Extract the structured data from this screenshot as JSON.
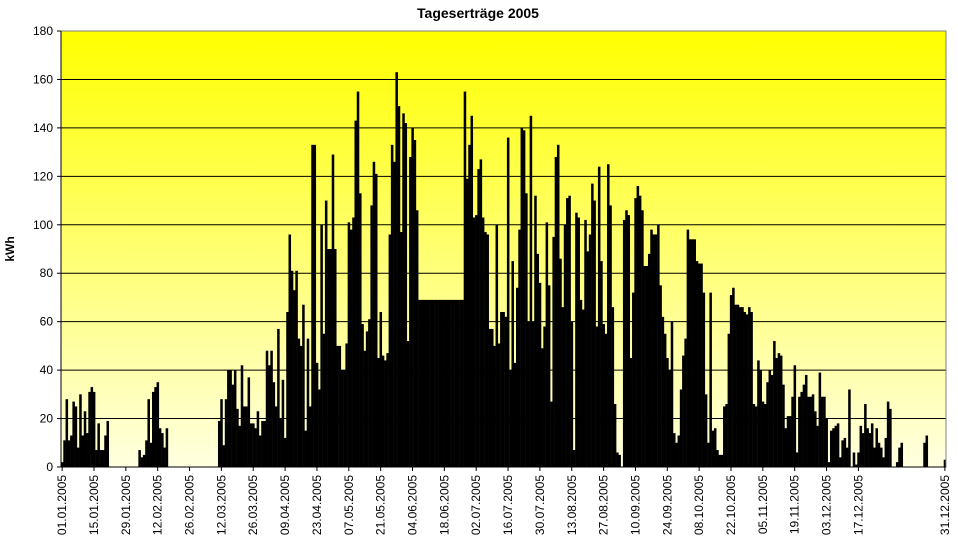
{
  "chart_data": {
    "type": "bar",
    "title": "Tageserträge 2005",
    "xlabel": "",
    "ylabel": "kWh",
    "ylim": [
      0,
      180
    ],
    "y_ticks": [
      0,
      20,
      40,
      60,
      80,
      100,
      120,
      140,
      160,
      180
    ],
    "x_tick_labels": [
      "01.01.2005",
      "15.01.2005",
      "29.01.2005",
      "12.02.2005",
      "26.02.2005",
      "12.03.2005",
      "26.03.2005",
      "09.04.2005",
      "23.04.2005",
      "07.05.2005",
      "21.05.2005",
      "04.06.2005",
      "18.06.2005",
      "02.07.2005",
      "16.07.2005",
      "30.07.2005",
      "13.08.2005",
      "27.08.2005",
      "10.09.2005",
      "24.09.2005",
      "08.10.2005",
      "22.10.2005",
      "05.11.2005",
      "19.11.2005",
      "03.12.2005",
      "17.12.2005",
      "31.12.2005"
    ],
    "x_start": "01.01.2005",
    "x_end": "31.12.2005",
    "grid": true,
    "legend": "none",
    "colors": {
      "bar": "#000000",
      "background_top": "#ffff00",
      "background_bottom": "#ffffe0",
      "gridline": "#000000"
    },
    "values": [
      2,
      11,
      28,
      11,
      13,
      27,
      25,
      8,
      30,
      13,
      23,
      14,
      31,
      33,
      31,
      7,
      18,
      7,
      7,
      13,
      19,
      0,
      0,
      0,
      0,
      0,
      0,
      0,
      0,
      0,
      0,
      0,
      0,
      0,
      7,
      4,
      5,
      11,
      28,
      10,
      31,
      33,
      35,
      16,
      14,
      8,
      16,
      0,
      0,
      0,
      0,
      0,
      0,
      0,
      0,
      0,
      0,
      0,
      0,
      0,
      0,
      0,
      0,
      0,
      0,
      0,
      0,
      0,
      0,
      19,
      28,
      9,
      28,
      40,
      40,
      34,
      40,
      24,
      17,
      42,
      25,
      25,
      37,
      18,
      18,
      16,
      23,
      13,
      19,
      19,
      48,
      42,
      48,
      35,
      25,
      57,
      20,
      36,
      12,
      64,
      96,
      81,
      73,
      81,
      53,
      50,
      67,
      15,
      53,
      25,
      133,
      133,
      43,
      32,
      100,
      55,
      110,
      90,
      90,
      129,
      90,
      50,
      50,
      40,
      40,
      51,
      101,
      98,
      103,
      143,
      155,
      113,
      59,
      48,
      56,
      61,
      108,
      126,
      121,
      45,
      64,
      46,
      44,
      47,
      96,
      133,
      126,
      163,
      149,
      97,
      146,
      142,
      52,
      128,
      140,
      135,
      106,
      69,
      69,
      69,
      69,
      69,
      69,
      69,
      69,
      69,
      69,
      69,
      69,
      69,
      69,
      69,
      69,
      69,
      69,
      69,
      69,
      155,
      119,
      133,
      145,
      103,
      104,
      123,
      127,
      103,
      97,
      96,
      57,
      57,
      50,
      100,
      51,
      64,
      64,
      62,
      136,
      40,
      85,
      43,
      74,
      98,
      140,
      139,
      113,
      60,
      145,
      60,
      112,
      88,
      76,
      49,
      58,
      101,
      75,
      27,
      95,
      128,
      133,
      86,
      66,
      100,
      111,
      112,
      60,
      7,
      105,
      103,
      69,
      65,
      102,
      89,
      96,
      117,
      110,
      58,
      124,
      85,
      59,
      55,
      125,
      108,
      66,
      26,
      6,
      5,
      0,
      102,
      106,
      104,
      45,
      72,
      111,
      116,
      112,
      106,
      83,
      83,
      88,
      98,
      96,
      96,
      100,
      75,
      62,
      55,
      45,
      40,
      60,
      14,
      10,
      13,
      32,
      46,
      53,
      98,
      94,
      94,
      94,
      85,
      84,
      84,
      72,
      30,
      10,
      72,
      15,
      16,
      7,
      5,
      5,
      25,
      26,
      55,
      71,
      74,
      67,
      67,
      66,
      66,
      64,
      63,
      66,
      64,
      26,
      25,
      44,
      40,
      27,
      26,
      35,
      40,
      38,
      52,
      45,
      47,
      46,
      34,
      16,
      21,
      21,
      29,
      42,
      6,
      29,
      31,
      34,
      38,
      29,
      29,
      30,
      23,
      17,
      39,
      29,
      29,
      20,
      2,
      15,
      16,
      17,
      18,
      4,
      11,
      12,
      8,
      32,
      0,
      6,
      1,
      6,
      17,
      14,
      26,
      16,
      14,
      18,
      8,
      16,
      10,
      8,
      4,
      12,
      27,
      24,
      0,
      0,
      2,
      8,
      10,
      0,
      0,
      0,
      0,
      0,
      0,
      0,
      0,
      0,
      10,
      13,
      0,
      0,
      0,
      0,
      0,
      0,
      0,
      3
    ]
  }
}
